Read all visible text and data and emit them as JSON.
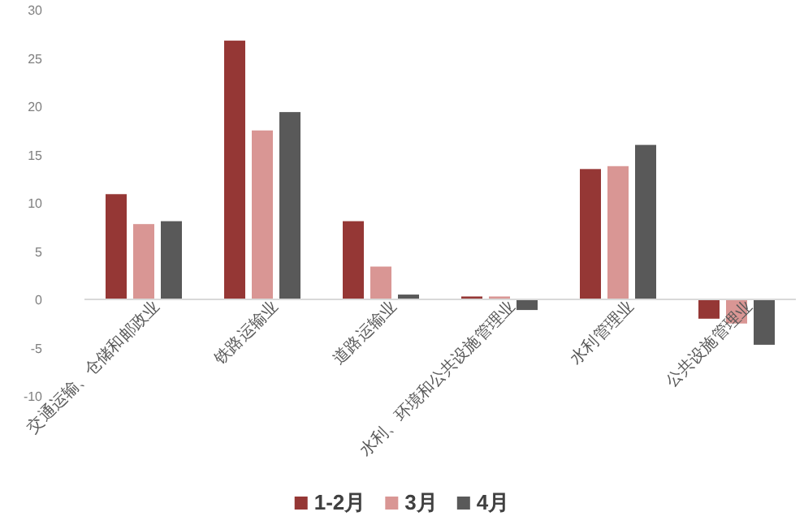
{
  "chart_data": {
    "type": "bar",
    "categories": [
      "交通运输、仓储和邮政业",
      "铁路运输业",
      "道路运输业",
      "水利、环境和公共设施管理业",
      "水利管理业",
      "公共设施管理业"
    ],
    "series": [
      {
        "name": "1-2月",
        "color": "#953735",
        "values": [
          10.9,
          26.8,
          8.1,
          0.3,
          13.5,
          -2.0
        ]
      },
      {
        "name": "3月",
        "color": "#d99694",
        "values": [
          7.8,
          17.5,
          3.4,
          0.3,
          13.8,
          -2.5
        ]
      },
      {
        "name": "4月",
        "color": "#595959",
        "values": [
          8.1,
          19.4,
          0.5,
          -1.1,
          16.0,
          -4.7
        ]
      }
    ],
    "ylim": [
      -10,
      30
    ],
    "yticks": [
      -10,
      -5,
      0,
      5,
      10,
      15,
      20,
      25,
      30
    ],
    "grid": false,
    "legend": "bottom"
  }
}
